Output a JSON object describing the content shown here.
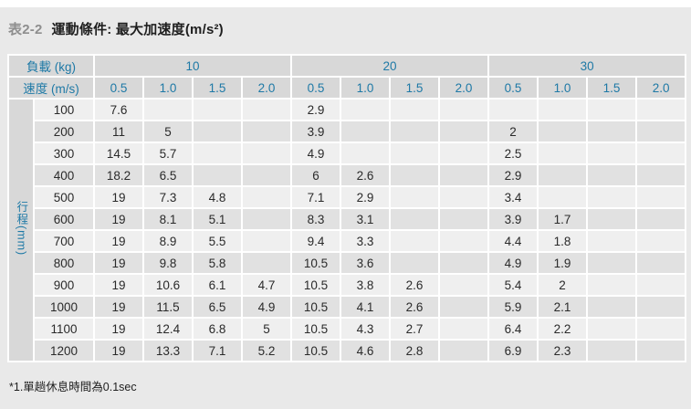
{
  "title": {
    "prefix": "表2-2",
    "text": "運動條件: 最大加速度(m/s²)"
  },
  "table": {
    "load_label": "負載 (kg)",
    "speed_label": "速度 (m/s)",
    "stroke_label": "行程(mm)",
    "loads": [
      "10",
      "20",
      "30"
    ],
    "speeds": [
      "0.5",
      "1.0",
      "1.5",
      "2.0"
    ],
    "rows": [
      {
        "stroke": "100",
        "values": [
          "7.6",
          "",
          "",
          "",
          "2.9",
          "",
          "",
          "",
          "",
          "",
          "",
          ""
        ]
      },
      {
        "stroke": "200",
        "values": [
          "11",
          "5",
          "",
          "",
          "3.9",
          "",
          "",
          "",
          "2",
          "",
          "",
          ""
        ]
      },
      {
        "stroke": "300",
        "values": [
          "14.5",
          "5.7",
          "",
          "",
          "4.9",
          "",
          "",
          "",
          "2.5",
          "",
          "",
          ""
        ]
      },
      {
        "stroke": "400",
        "values": [
          "18.2",
          "6.5",
          "",
          "",
          "6",
          "2.6",
          "",
          "",
          "2.9",
          "",
          "",
          ""
        ]
      },
      {
        "stroke": "500",
        "values": [
          "19",
          "7.3",
          "4.8",
          "",
          "7.1",
          "2.9",
          "",
          "",
          "3.4",
          "",
          "",
          ""
        ]
      },
      {
        "stroke": "600",
        "values": [
          "19",
          "8.1",
          "5.1",
          "",
          "8.3",
          "3.1",
          "",
          "",
          "3.9",
          "1.7",
          "",
          ""
        ]
      },
      {
        "stroke": "700",
        "values": [
          "19",
          "8.9",
          "5.5",
          "",
          "9.4",
          "3.3",
          "",
          "",
          "4.4",
          "1.8",
          "",
          ""
        ]
      },
      {
        "stroke": "800",
        "values": [
          "19",
          "9.8",
          "5.8",
          "",
          "10.5",
          "3.6",
          "",
          "",
          "4.9",
          "1.9",
          "",
          ""
        ]
      },
      {
        "stroke": "900",
        "values": [
          "19",
          "10.6",
          "6.1",
          "4.7",
          "10.5",
          "3.8",
          "2.6",
          "",
          "5.4",
          "2",
          "",
          ""
        ]
      },
      {
        "stroke": "1000",
        "values": [
          "19",
          "11.5",
          "6.5",
          "4.9",
          "10.5",
          "4.1",
          "2.6",
          "",
          "5.9",
          "2.1",
          "",
          ""
        ]
      },
      {
        "stroke": "1100",
        "values": [
          "19",
          "12.4",
          "6.8",
          "5",
          "10.5",
          "4.3",
          "2.7",
          "",
          "6.4",
          "2.2",
          "",
          ""
        ]
      },
      {
        "stroke": "1200",
        "values": [
          "19",
          "13.3",
          "7.1",
          "5.2",
          "10.5",
          "4.6",
          "2.8",
          "",
          "6.9",
          "2.3",
          "",
          ""
        ]
      }
    ]
  },
  "footnote": {
    "text": "*1.單趟休息時間為0.1sec"
  },
  "colors": {
    "accent_blue": "#1e79a6",
    "header_bg": "#d8d8d8",
    "row_light": "#efefef",
    "row_dark": "#e1e1e1",
    "page_bg": "#e9e9e9",
    "title_prefix_gray": "#8e8e8e"
  }
}
